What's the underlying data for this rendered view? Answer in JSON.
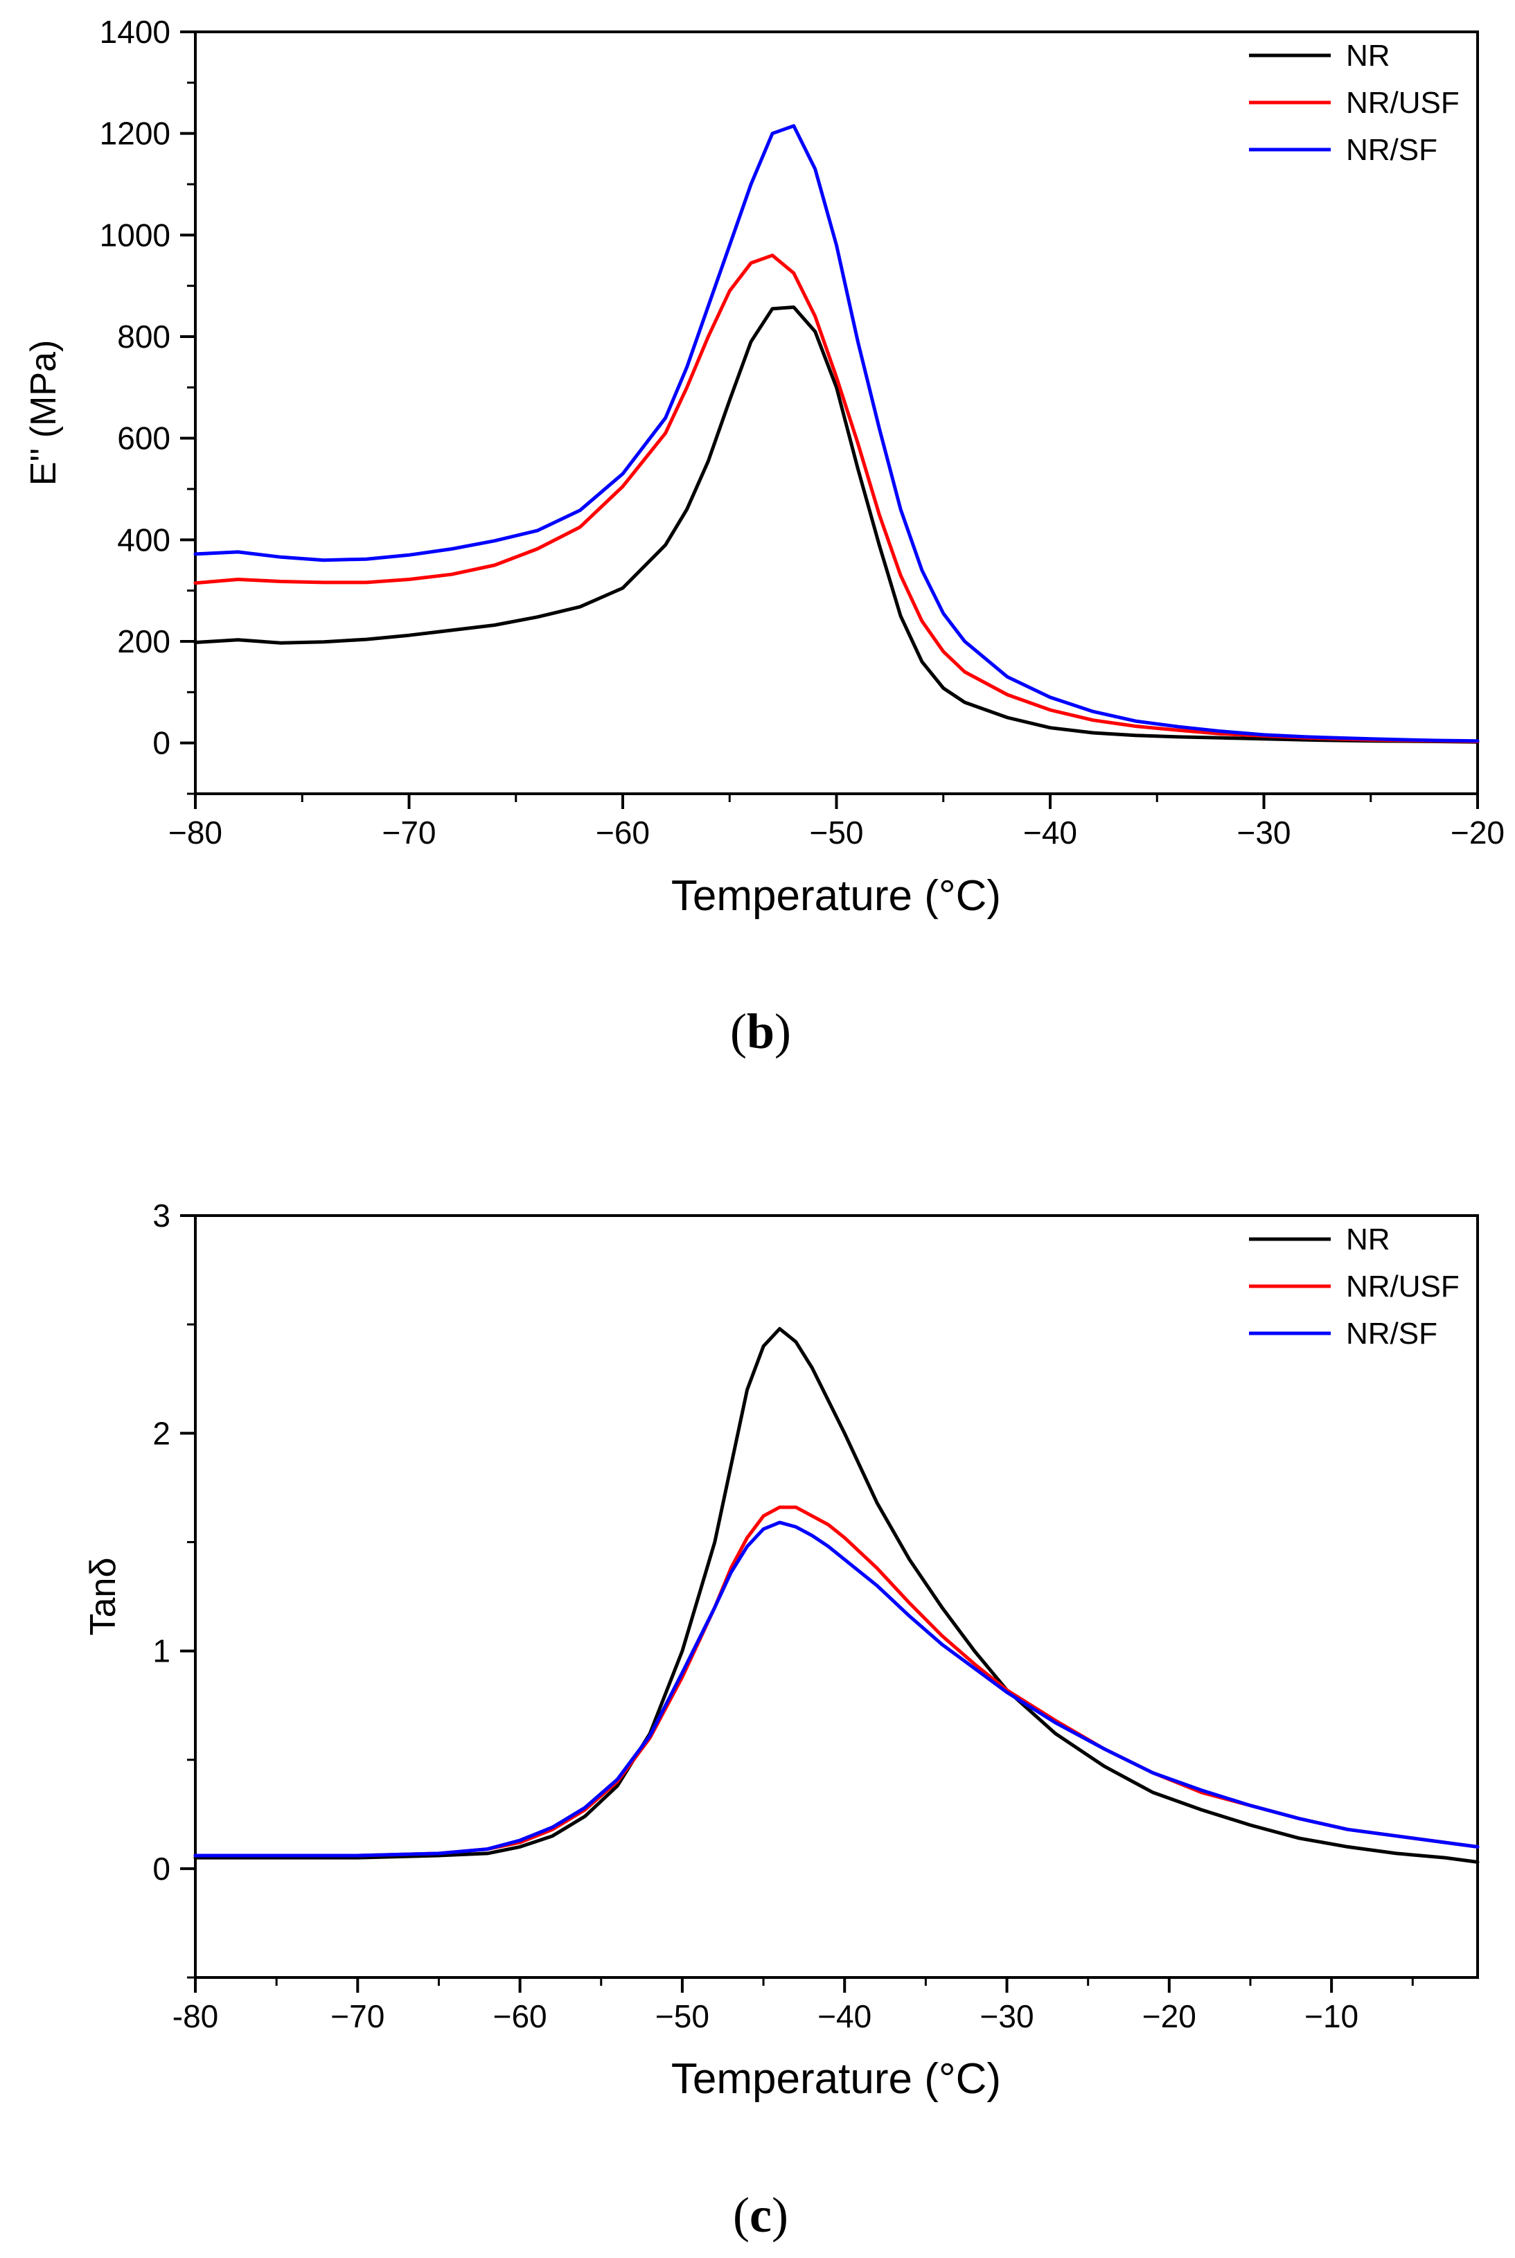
{
  "chart_data": [
    {
      "type": "line",
      "panel": "b",
      "caption_open": "(",
      "caption_letter": "b",
      "caption_close": ")",
      "xlabel": "Temperature (°C)",
      "ylabel": "E'' (MPa)",
      "xlim": [
        -80,
        -20
      ],
      "ylim": [
        -100,
        1400
      ],
      "xticks": [
        -80,
        -70,
        -60,
        -50,
        -40,
        -30,
        -20
      ],
      "xtick_labels": [
        "−80",
        "−70",
        "−60",
        "−50",
        "−40",
        "−30",
        "−20"
      ],
      "yticks": [
        0,
        200,
        400,
        600,
        800,
        1000,
        1200,
        1400
      ],
      "ytick_labels": [
        "0",
        "200",
        "400",
        "600",
        "800",
        "1000",
        "1200",
        "1400"
      ],
      "legend_position": "top-right",
      "series": [
        {
          "name": "NR",
          "color": "#000000",
          "x": [
            -80,
            -78,
            -76,
            -74,
            -72,
            -70,
            -68,
            -66,
            -64,
            -62,
            -60,
            -58,
            -57,
            -56,
            -55,
            -54,
            -53,
            -52,
            -51,
            -50,
            -49,
            -48,
            -47,
            -46,
            -45,
            -44,
            -42,
            -40,
            -38,
            -36,
            -34,
            -32,
            -30,
            -28,
            -25,
            -22,
            -20
          ],
          "y": [
            198,
            203,
            197,
            199,
            204,
            212,
            222,
            232,
            248,
            268,
            305,
            390,
            460,
            555,
            675,
            790,
            855,
            858,
            810,
            700,
            540,
            390,
            250,
            160,
            108,
            80,
            50,
            30,
            20,
            15,
            12,
            10,
            8,
            6,
            4,
            3,
            2
          ]
        },
        {
          "name": "NR/USF",
          "color": "#ff0000",
          "x": [
            -80,
            -78,
            -76,
            -74,
            -72,
            -70,
            -68,
            -66,
            -64,
            -62,
            -60,
            -58,
            -57,
            -56,
            -55,
            -54,
            -53,
            -52,
            -51,
            -50,
            -49,
            -48,
            -47,
            -46,
            -45,
            -44,
            -42,
            -40,
            -38,
            -36,
            -34,
            -32,
            -30,
            -28,
            -25,
            -22,
            -20
          ],
          "y": [
            315,
            322,
            318,
            316,
            316,
            322,
            332,
            350,
            382,
            425,
            505,
            610,
            700,
            800,
            890,
            945,
            960,
            925,
            840,
            720,
            590,
            450,
            330,
            240,
            180,
            140,
            95,
            65,
            45,
            33,
            25,
            18,
            14,
            10,
            6,
            4,
            3
          ]
        },
        {
          "name": "NR/SF",
          "color": "#0000ff",
          "x": [
            -80,
            -78,
            -76,
            -74,
            -72,
            -70,
            -68,
            -66,
            -64,
            -62,
            -60,
            -58,
            -57,
            -56,
            -55,
            -54,
            -53,
            -52,
            -51,
            -50,
            -49,
            -48,
            -47,
            -46,
            -45,
            -44,
            -42,
            -40,
            -38,
            -36,
            -34,
            -32,
            -30,
            -28,
            -25,
            -22,
            -20
          ],
          "y": [
            372,
            376,
            366,
            360,
            362,
            370,
            382,
            398,
            418,
            458,
            530,
            640,
            740,
            860,
            980,
            1100,
            1200,
            1215,
            1130,
            980,
            790,
            620,
            460,
            340,
            255,
            200,
            130,
            90,
            62,
            43,
            32,
            23,
            16,
            12,
            8,
            5,
            4
          ]
        }
      ]
    },
    {
      "type": "line",
      "panel": "c",
      "caption_open": "(",
      "caption_letter": "c",
      "caption_close": ")",
      "xlabel": "Temperature (°C)",
      "ylabel": "Tanδ",
      "xlim": [
        -80,
        -1
      ],
      "ylim": [
        -0.5,
        3
      ],
      "xticks": [
        -80,
        -70,
        -60,
        -50,
        -40,
        -30,
        -20,
        -10
      ],
      "xtick_labels": [
        "-80",
        "−70",
        "−60",
        "−50",
        "−40",
        "−30",
        "−20",
        "−10"
      ],
      "yticks": [
        0,
        1,
        2,
        3
      ],
      "ytick_labels": [
        "0",
        "1",
        "2",
        "3"
      ],
      "legend_position": "top-right",
      "series": [
        {
          "name": "NR",
          "color": "#000000",
          "x": [
            -80,
            -75,
            -70,
            -65,
            -62,
            -60,
            -58,
            -56,
            -54,
            -52,
            -50,
            -48,
            -47,
            -46,
            -45,
            -44,
            -43,
            -42,
            -41,
            -40,
            -38,
            -36,
            -34,
            -32,
            -30,
            -27,
            -24,
            -21,
            -18,
            -15,
            -12,
            -9,
            -6,
            -3,
            -1
          ],
          "y": [
            0.05,
            0.05,
            0.05,
            0.06,
            0.07,
            0.1,
            0.15,
            0.24,
            0.38,
            0.62,
            1.0,
            1.5,
            1.85,
            2.2,
            2.4,
            2.48,
            2.42,
            2.3,
            2.15,
            2.0,
            1.68,
            1.42,
            1.2,
            1.0,
            0.82,
            0.62,
            0.47,
            0.35,
            0.27,
            0.2,
            0.14,
            0.1,
            0.07,
            0.05,
            0.03
          ]
        },
        {
          "name": "NR/USF",
          "color": "#ff0000",
          "x": [
            -80,
            -75,
            -70,
            -65,
            -62,
            -60,
            -58,
            -56,
            -54,
            -52,
            -50,
            -48,
            -47,
            -46,
            -45,
            -44,
            -43,
            -42,
            -41,
            -40,
            -38,
            -36,
            -34,
            -32,
            -30,
            -27,
            -24,
            -21,
            -18,
            -15,
            -12,
            -9,
            -6,
            -3,
            -1
          ],
          "y": [
            0.06,
            0.06,
            0.06,
            0.07,
            0.09,
            0.12,
            0.18,
            0.27,
            0.4,
            0.6,
            0.88,
            1.2,
            1.38,
            1.52,
            1.62,
            1.66,
            1.66,
            1.62,
            1.58,
            1.52,
            1.38,
            1.22,
            1.07,
            0.94,
            0.82,
            0.68,
            0.55,
            0.44,
            0.35,
            0.29,
            0.23,
            0.18,
            0.15,
            0.12,
            0.1
          ]
        },
        {
          "name": "NR/SF",
          "color": "#0000ff",
          "x": [
            -80,
            -75,
            -70,
            -65,
            -62,
            -60,
            -58,
            -56,
            -54,
            -52,
            -50,
            -48,
            -47,
            -46,
            -45,
            -44,
            -43,
            -42,
            -41,
            -40,
            -38,
            -36,
            -34,
            -32,
            -30,
            -27,
            -24,
            -21,
            -18,
            -15,
            -12,
            -9,
            -6,
            -3,
            -1
          ],
          "y": [
            0.06,
            0.06,
            0.06,
            0.07,
            0.09,
            0.13,
            0.19,
            0.28,
            0.41,
            0.61,
            0.9,
            1.2,
            1.36,
            1.48,
            1.56,
            1.59,
            1.57,
            1.53,
            1.48,
            1.42,
            1.3,
            1.16,
            1.03,
            0.92,
            0.81,
            0.67,
            0.55,
            0.44,
            0.36,
            0.29,
            0.23,
            0.18,
            0.15,
            0.12,
            0.1
          ]
        }
      ]
    }
  ]
}
